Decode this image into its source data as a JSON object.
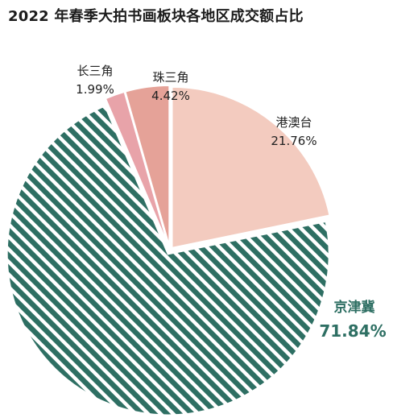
{
  "title": "2022 年春季大拍书画板块各地区成交额占比",
  "colors": {
    "jingjinji": "#2e6f63",
    "gangaotai": "#f3cbbf",
    "zhusanjiao": "#e5a298",
    "changsanjiao": "#e8a3a9",
    "background": "#ffffff"
  },
  "chart_data": {
    "type": "pie",
    "title": "2022 年春季大拍书画板块各地区成交额占比",
    "slices": [
      {
        "label": "港澳台",
        "value": 21.76,
        "display": "21.76%",
        "color": "#f3cbbf",
        "pattern": "solid"
      },
      {
        "label": "京津冀",
        "value": 71.84,
        "display": "71.84%",
        "color": "#2e6f63",
        "pattern": "diagonal-stripes"
      },
      {
        "label": "长三角",
        "value": 1.99,
        "display": "1.99%",
        "color": "#e8a3a9",
        "pattern": "solid"
      },
      {
        "label": "珠三角",
        "value": 4.42,
        "display": "4.42%",
        "color": "#e5a298",
        "pattern": "solid"
      }
    ],
    "start": "top",
    "direction": "clockwise",
    "exploded": true
  }
}
